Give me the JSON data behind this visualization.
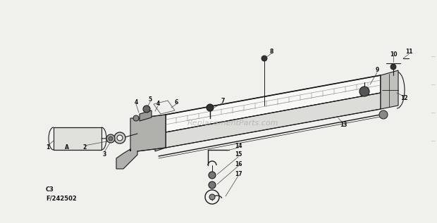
{
  "bg_color": "#f0f0ec",
  "line_color": "#1a1a1a",
  "label_color": "#111111",
  "watermark": "ReplacementParts.com",
  "footer_line1": "C3",
  "footer_line2": "F/242502"
}
